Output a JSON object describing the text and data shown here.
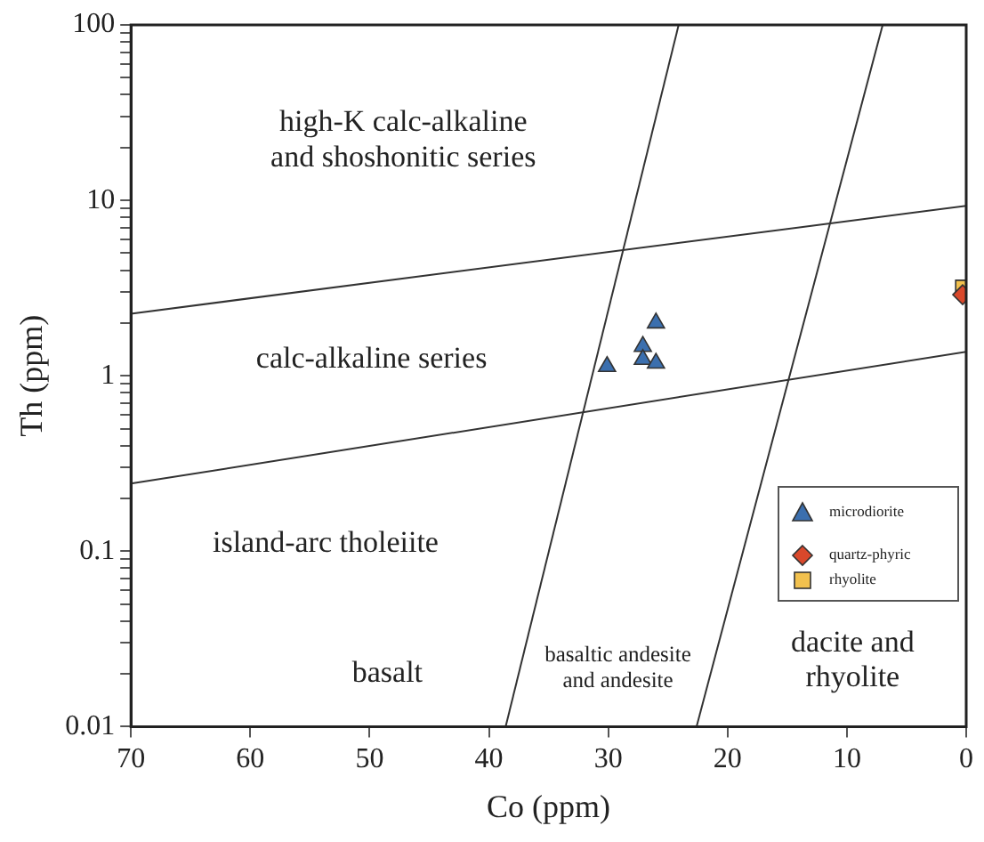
{
  "chart_data": {
    "type": "scatter",
    "xlabel": "Co (ppm)",
    "ylabel": "Th (ppm)",
    "log": "y",
    "xlim": [
      70,
      0
    ],
    "xticks": [
      70,
      60,
      50,
      40,
      30,
      20,
      10,
      0
    ],
    "ylim": [
      0.01,
      100
    ],
    "yticks": [
      0.01,
      {
        "value": 0.02,
        "label": null
      },
      {
        "value": 0.03,
        "label": null
      },
      {
        "value": 0.04,
        "label": null
      },
      {
        "value": 0.05,
        "label": null
      },
      {
        "value": 0.06,
        "label": null
      },
      {
        "value": 0.07,
        "label": null
      },
      {
        "value": 0.08,
        "label": null
      },
      {
        "value": 0.09,
        "label": null
      },
      0.1,
      {
        "value": 0.2,
        "label": null
      },
      {
        "value": 0.3,
        "label": null
      },
      {
        "value": 0.4,
        "label": null
      },
      {
        "value": 0.5,
        "label": null
      },
      {
        "value": 0.6,
        "label": null
      },
      {
        "value": 0.7,
        "label": null
      },
      {
        "value": 0.8,
        "label": null
      },
      {
        "value": 0.9,
        "label": null
      },
      1,
      {
        "value": 2,
        "label": null
      },
      {
        "value": 3,
        "label": null
      },
      {
        "value": 4,
        "label": null
      },
      {
        "value": 5,
        "label": null
      },
      {
        "value": 6,
        "label": null
      },
      {
        "value": 7,
        "label": null
      },
      {
        "value": 8,
        "label": null
      },
      {
        "value": 9,
        "label": null
      },
      10,
      {
        "value": 20,
        "label": null
      },
      {
        "value": 30,
        "label": null
      },
      {
        "value": 40,
        "label": null
      },
      {
        "value": 50,
        "label": null
      },
      {
        "value": 60,
        "label": null
      },
      {
        "value": 70,
        "label": null
      },
      {
        "value": 80,
        "label": null
      },
      {
        "value": 90,
        "label": null
      },
      100
    ],
    "grid": false,
    "legend": "bottom right",
    "series": [
      {
        "name": "microdiorite",
        "marker": "triangle",
        "color": "#3b6fae",
        "x": [
          30.1,
          26.0,
          27.1,
          27.1,
          26.0
        ],
        "values": [
          1.13,
          2.0,
          1.47,
          1.24,
          1.18
        ]
      },
      {
        "name": "quartz-phyric",
        "marker": "diamond",
        "color": "#d9482b",
        "x": [
          0.3
        ],
        "values": [
          2.9
        ]
      },
      {
        "name": "rhyolite",
        "marker": "square",
        "color": "#f2c14e",
        "x": [
          0.3
        ],
        "values": [
          3.2
        ]
      },
      {
        "type": "line",
        "marker": "none",
        "color": "#333333",
        "x": [
          70,
          0
        ],
        "values": [
          2.26,
          9.3
        ]
      },
      {
        "type": "line",
        "marker": "none",
        "color": "#333333",
        "x": [
          70,
          0
        ],
        "values": [
          0.243,
          1.37
        ]
      },
      {
        "type": "line",
        "marker": "none",
        "color": "#333333",
        "x": [
          38.6,
          24.1
        ],
        "values": [
          0.01,
          100
        ]
      },
      {
        "type": "line",
        "marker": "none",
        "color": "#333333",
        "x": [
          22.6,
          7.0
        ],
        "values": [
          0.01,
          100
        ]
      }
    ],
    "annotations": [
      "high-K calc-alkaline\nand shoshonitic series",
      "calc-alkaline series",
      "island-arc tholeiite",
      "basalt",
      "basaltic andesite\nand andesite",
      "dacite and\nrhyolite"
    ]
  }
}
